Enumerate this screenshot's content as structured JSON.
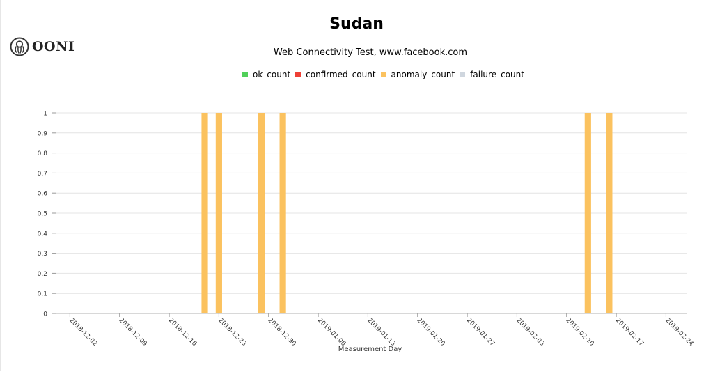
{
  "logo": {
    "text": "OONI",
    "icon": "octopus-icon"
  },
  "chart_data": {
    "type": "bar",
    "title": "Sudan",
    "subtitle": "Web Connectivity Test, www.facebook.com",
    "xlabel": "Measurement Day",
    "ylabel": "",
    "ylim": [
      0,
      1
    ],
    "yticks": [
      "0",
      "0.1",
      "0.2",
      "0.3",
      "0.4",
      "0.5",
      "0.6",
      "0.7",
      "0.8",
      "0.9",
      "1"
    ],
    "xlim": [
      "2018-11-30",
      "2019-02-27"
    ],
    "xticks": [
      "2018-12-02",
      "2018-12-09",
      "2018-12-16",
      "2018-12-23",
      "2018-12-30",
      "2019-01-06",
      "2019-01-13",
      "2019-01-20",
      "2019-01-27",
      "2019-02-03",
      "2019-02-10",
      "2019-02-17",
      "2019-02-24"
    ],
    "stacked": true,
    "grid": true,
    "legend_position": "top",
    "series": [
      {
        "name": "ok_count",
        "color": "#51d05a",
        "points": []
      },
      {
        "name": "confirmed_count",
        "color": "#ee4036",
        "points": []
      },
      {
        "name": "anomaly_count",
        "color": "#fbc25f",
        "points": [
          {
            "x": "2018-12-21",
            "y": 1
          },
          {
            "x": "2018-12-23",
            "y": 1
          },
          {
            "x": "2018-12-29",
            "y": 1
          },
          {
            "x": "2019-01-01",
            "y": 1
          },
          {
            "x": "2019-02-13",
            "y": 1
          },
          {
            "x": "2019-02-16",
            "y": 1
          }
        ]
      },
      {
        "name": "failure_count",
        "color": "#cfd6de",
        "points": []
      }
    ]
  }
}
